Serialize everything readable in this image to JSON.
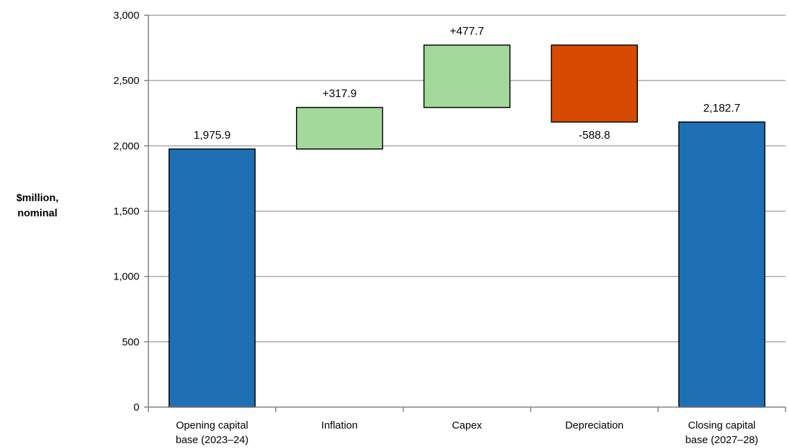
{
  "chart_data": {
    "type": "bar",
    "subtype": "waterfall",
    "title": "",
    "xlabel": "",
    "ylabel": "$million, nominal",
    "ylabel_lines": [
      "$million,",
      "nominal"
    ],
    "ylim": [
      0,
      3000
    ],
    "yticks": [
      0,
      500,
      1000,
      1500,
      2000,
      2500,
      3000
    ],
    "ytick_labels": [
      "0",
      "500",
      "1,000",
      "1,500",
      "2,000",
      "2,500",
      "3,000"
    ],
    "grid": true,
    "legend": "none",
    "categories": [
      {
        "lines": [
          "Opening capital",
          "base (2023–24)"
        ]
      },
      {
        "lines": [
          "Inflation"
        ]
      },
      {
        "lines": [
          "Capex"
        ]
      },
      {
        "lines": [
          "Depreciation"
        ]
      },
      {
        "lines": [
          "Closing capital",
          "base (2027–28)"
        ]
      }
    ],
    "steps": [
      {
        "kind": "total",
        "start": 0,
        "end": 1975.9,
        "label": "1,975.9",
        "label_position": "above",
        "color": "#1f6fb4"
      },
      {
        "kind": "increase",
        "start": 1975.9,
        "end": 2293.8,
        "label": "+317.9",
        "label_position": "above",
        "color": "#a3d99b"
      },
      {
        "kind": "increase",
        "start": 2293.8,
        "end": 2771.5,
        "label": "+477.7",
        "label_position": "above",
        "color": "#a3d99b"
      },
      {
        "kind": "decrease",
        "start": 2771.5,
        "end": 2182.7,
        "label": "-588.8",
        "label_position": "below",
        "color": "#d64b00"
      },
      {
        "kind": "total",
        "start": 0,
        "end": 2182.7,
        "label": "2,182.7",
        "label_position": "above",
        "color": "#1f6fb4"
      }
    ],
    "colors": {
      "grid": "#a6a6a6",
      "axis": "#808080",
      "bar_border": "#000000"
    }
  }
}
